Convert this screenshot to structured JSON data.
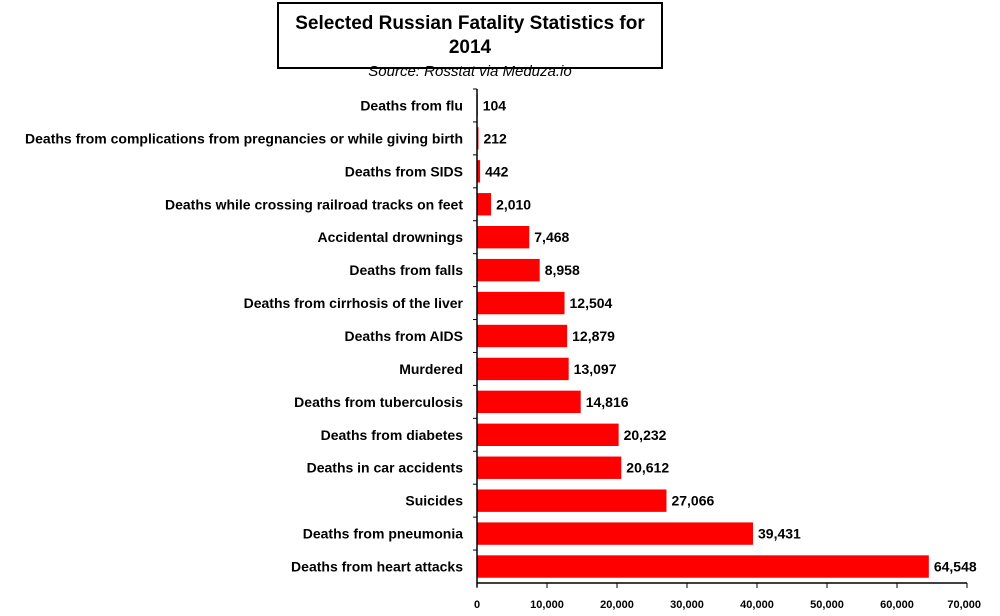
{
  "chart_data": {
    "type": "bar",
    "orientation": "horizontal",
    "title": "Selected Russian Fatality Statistics for 2014",
    "subtitle": "Source: Rosstat via Meduza.io",
    "xlabel": "",
    "ylabel": "",
    "xlim": [
      0,
      70000
    ],
    "xticks": [
      0,
      10000,
      20000,
      30000,
      40000,
      50000,
      60000,
      70000
    ],
    "xtick_labels": [
      "0",
      "10,000",
      "20,000",
      "30,000",
      "40,000",
      "50,000",
      "60,000",
      "70,000"
    ],
    "grid": false,
    "bar_color": "#ff0000",
    "categories": [
      "Deaths from flu",
      "Deaths from complications from pregnancies or while giving birth",
      "Deaths from SIDS",
      "Deaths while crossing railroad tracks on feet",
      "Accidental drownings",
      "Deaths from falls",
      "Deaths from cirrhosis of the liver",
      "Deaths from AIDS",
      "Murdered",
      "Deaths from tuberculosis",
      "Deaths from diabetes",
      "Deaths in car accidents",
      "Suicides",
      "Deaths from pneumonia",
      "Deaths from heart attacks"
    ],
    "values": [
      104,
      212,
      442,
      2010,
      7468,
      8958,
      12504,
      12879,
      13097,
      14816,
      20232,
      20612,
      27066,
      39431,
      64548
    ],
    "value_labels": [
      "104",
      "212",
      "442",
      "2,010",
      "7,468",
      "8,958",
      "12,504",
      "12,879",
      "13,097",
      "14,816",
      "20,232",
      "20,612",
      "27,066",
      "39,431",
      "64,548"
    ]
  }
}
